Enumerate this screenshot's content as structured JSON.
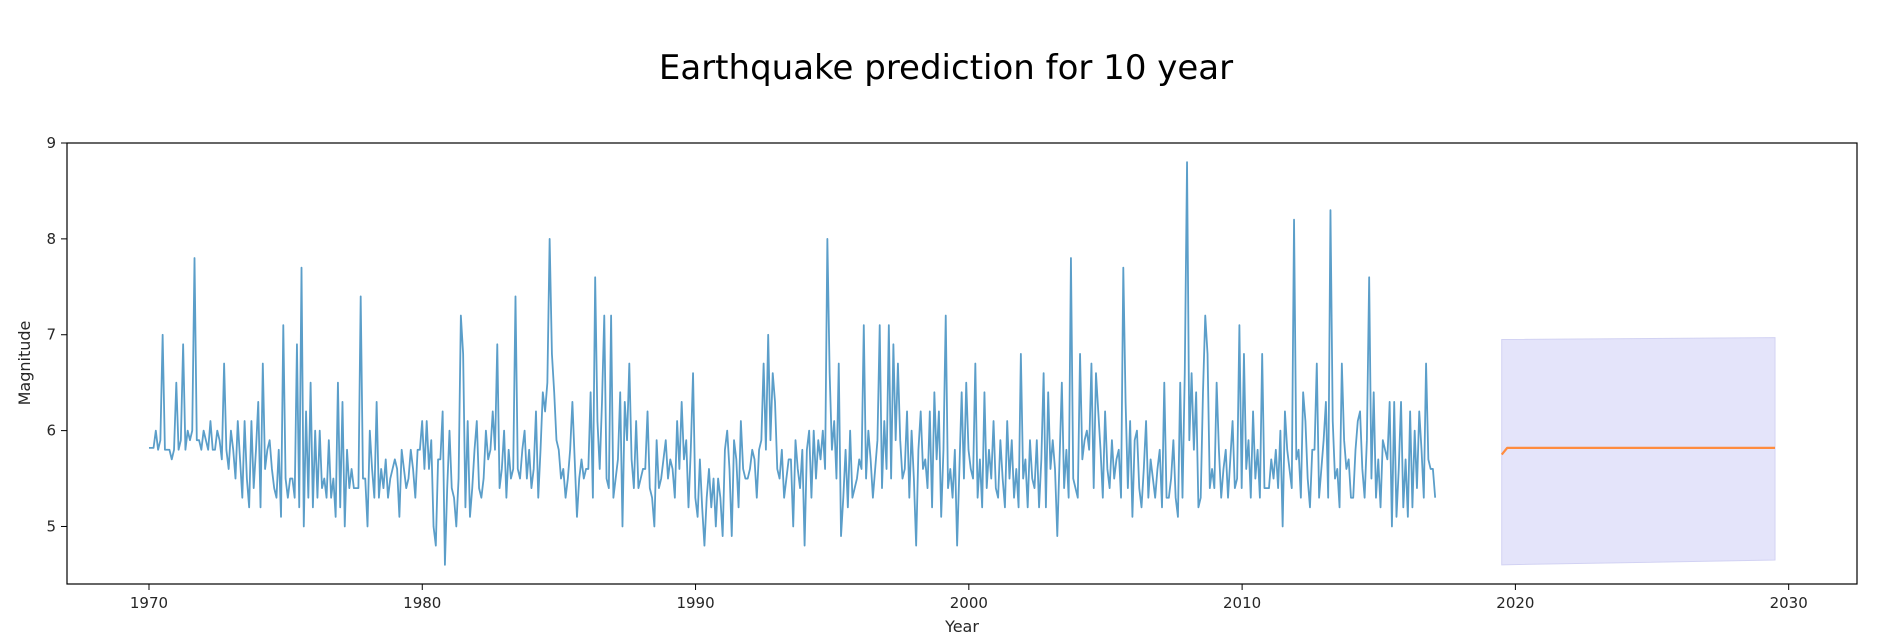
{
  "chart_data": {
    "type": "line",
    "title": "Earthquake prediction for 10 year",
    "xlabel": "Year",
    "ylabel": "Magnitude",
    "xlim": [
      1967,
      2032.5
    ],
    "ylim": [
      4.4,
      9
    ],
    "x_ticks": [
      1970,
      1980,
      1990,
      2000,
      2010,
      2020,
      2030
    ],
    "y_ticks": [
      5,
      6,
      7,
      8,
      9
    ],
    "grid": false,
    "legend": "none",
    "series": [
      {
        "color": "#5b9ec9",
        "x_start": 1970.0,
        "x_step": 0.0833,
        "values": [
          5.82,
          5.82,
          5.82,
          6.0,
          5.8,
          5.9,
          7.0,
          5.8,
          5.8,
          5.8,
          5.7,
          5.8,
          6.5,
          5.8,
          5.9,
          6.9,
          5.8,
          6.0,
          5.9,
          6.0,
          7.8,
          5.9,
          5.9,
          5.8,
          6.0,
          5.9,
          5.8,
          6.1,
          5.8,
          5.8,
          6.0,
          5.9,
          5.7,
          6.7,
          5.8,
          5.6,
          6.0,
          5.8,
          5.5,
          6.1,
          5.7,
          5.3,
          6.1,
          5.5,
          5.2,
          6.1,
          5.4,
          5.8,
          6.3,
          5.2,
          6.7,
          5.6,
          5.8,
          5.9,
          5.6,
          5.4,
          5.3,
          5.8,
          5.1,
          7.1,
          5.5,
          5.3,
          5.5,
          5.5,
          5.3,
          6.9,
          5.2,
          7.7,
          5.0,
          6.2,
          5.3,
          6.5,
          5.2,
          6.0,
          5.3,
          6.0,
          5.4,
          5.5,
          5.3,
          5.9,
          5.3,
          5.5,
          5.1,
          6.5,
          5.2,
          6.3,
          5.0,
          5.8,
          5.4,
          5.6,
          5.4,
          5.4,
          5.4,
          7.4,
          5.5,
          5.5,
          5.0,
          6.0,
          5.6,
          5.3,
          6.3,
          5.3,
          5.6,
          5.4,
          5.7,
          5.3,
          5.5,
          5.6,
          5.7,
          5.6,
          5.1,
          5.8,
          5.6,
          5.4,
          5.5,
          5.8,
          5.6,
          5.3,
          5.8,
          5.8,
          6.1,
          5.6,
          6.1,
          5.6,
          5.9,
          5.0,
          4.8,
          5.7,
          5.7,
          6.2,
          4.6,
          5.4,
          6.0,
          5.4,
          5.3,
          5.0,
          5.5,
          7.2,
          6.8,
          5.2,
          6.1,
          5.1,
          5.4,
          5.8,
          6.1,
          5.4,
          5.3,
          5.5,
          6.0,
          5.7,
          5.8,
          6.2,
          5.8,
          6.9,
          5.4,
          5.6,
          6.0,
          5.3,
          5.8,
          5.5,
          5.6,
          7.4,
          5.6,
          5.5,
          5.8,
          6.0,
          5.5,
          5.8,
          5.4,
          5.6,
          6.2,
          5.3,
          5.8,
          6.4,
          6.2,
          6.5,
          8.0,
          6.8,
          6.4,
          5.9,
          5.8,
          5.5,
          5.6,
          5.3,
          5.5,
          5.8,
          6.3,
          5.7,
          5.1,
          5.5,
          5.7,
          5.5,
          5.6,
          5.6,
          6.4,
          5.3,
          7.6,
          6.1,
          5.6,
          6.3,
          7.2,
          5.5,
          5.4,
          7.2,
          5.3,
          5.5,
          5.7,
          6.4,
          5.0,
          6.3,
          5.9,
          6.7,
          5.7,
          5.4,
          6.1,
          5.4,
          5.5,
          5.6,
          5.6,
          6.2,
          5.4,
          5.3,
          5.0,
          5.9,
          5.4,
          5.5,
          5.7,
          5.9,
          5.5,
          5.7,
          5.6,
          5.3,
          6.1,
          5.6,
          6.3,
          5.7,
          5.9,
          5.2,
          5.8,
          6.6,
          5.3,
          5.1,
          5.7,
          5.2,
          4.8,
          5.3,
          5.6,
          5.2,
          5.5,
          5.0,
          5.5,
          5.3,
          4.9,
          5.8,
          6.0,
          5.6,
          4.9,
          5.9,
          5.7,
          5.2,
          6.1,
          5.6,
          5.5,
          5.5,
          5.6,
          5.8,
          5.7,
          5.3,
          5.8,
          5.9,
          6.7,
          5.8,
          7.0,
          5.9,
          6.6,
          6.3,
          5.6,
          5.5,
          5.8,
          5.3,
          5.5,
          5.7,
          5.7,
          5.0,
          5.9,
          5.6,
          5.4,
          5.8,
          4.8,
          5.8,
          6.0,
          5.3,
          6.0,
          5.5,
          5.9,
          5.7,
          6.0,
          5.6,
          8.0,
          6.6,
          5.8,
          6.1,
          5.5,
          6.7,
          4.9,
          5.3,
          5.8,
          5.2,
          6.0,
          5.3,
          5.4,
          5.5,
          5.7,
          5.6,
          7.1,
          5.5,
          6.0,
          5.7,
          5.3,
          5.6,
          5.9,
          7.1,
          5.4,
          6.1,
          5.6,
          7.1,
          5.5,
          6.9,
          5.9,
          6.7,
          5.9,
          5.5,
          5.6,
          6.2,
          5.3,
          6.0,
          5.5,
          4.8,
          5.8,
          6.2,
          5.6,
          5.7,
          5.4,
          6.2,
          5.2,
          6.4,
          5.7,
          6.2,
          5.1,
          5.8,
          7.2,
          5.4,
          5.6,
          5.3,
          5.8,
          4.8,
          5.6,
          6.4,
          5.5,
          6.5,
          5.8,
          5.6,
          5.5,
          6.7,
          5.3,
          5.7,
          5.2,
          6.4,
          5.4,
          5.8,
          5.5,
          6.1,
          5.4,
          5.3,
          5.9,
          5.5,
          5.2,
          6.1,
          5.5,
          5.9,
          5.3,
          5.6,
          5.2,
          6.8,
          5.5,
          5.7,
          5.2,
          5.9,
          5.5,
          5.4,
          5.9,
          5.2,
          5.7,
          6.6,
          5.2,
          6.4,
          5.6,
          5.9,
          5.6,
          4.9,
          5.7,
          6.5,
          5.4,
          5.8,
          5.3,
          7.8,
          5.5,
          5.4,
          5.3,
          6.8,
          5.7,
          5.9,
          6.0,
          5.8,
          6.7,
          5.4,
          6.6,
          6.2,
          5.8,
          5.3,
          6.2,
          5.6,
          5.4,
          5.9,
          5.5,
          5.7,
          5.8,
          5.3,
          7.7,
          6.3,
          5.4,
          6.1,
          5.1,
          5.9,
          6.0,
          5.4,
          5.2,
          5.6,
          6.1,
          5.3,
          5.7,
          5.5,
          5.3,
          5.6,
          5.8,
          5.2,
          6.5,
          5.3,
          5.3,
          5.5,
          5.9,
          5.3,
          5.1,
          6.5,
          5.3,
          6.6,
          8.8,
          5.9,
          6.6,
          5.8,
          6.4,
          5.2,
          5.3,
          6.4,
          7.2,
          6.8,
          5.4,
          5.6,
          5.4,
          6.5,
          5.8,
          5.3,
          5.6,
          5.8,
          5.3,
          5.7,
          6.1,
          5.4,
          5.5,
          7.1,
          5.4,
          6.8,
          5.6,
          5.9,
          5.3,
          6.2,
          5.5,
          5.8,
          5.3,
          6.8,
          5.4,
          5.4,
          5.4,
          5.7,
          5.5,
          5.8,
          5.4,
          6.0,
          5.0,
          6.2,
          5.8,
          5.6,
          5.4,
          8.2,
          5.7,
          5.8,
          5.3,
          6.4,
          6.1,
          5.5,
          5.2,
          5.8,
          5.8,
          6.7,
          5.3,
          5.6,
          5.9,
          6.3,
          5.3,
          8.3,
          6.1,
          5.5,
          5.6,
          5.2,
          6.7,
          5.9,
          5.6,
          5.7,
          5.3,
          5.3,
          5.8,
          6.1,
          6.2,
          5.6,
          5.3,
          5.9,
          7.6,
          5.5,
          6.4,
          5.3,
          5.7,
          5.2,
          5.9,
          5.8,
          5.7,
          6.3,
          5.0,
          6.3,
          5.1,
          5.6,
          6.3,
          5.2,
          5.7,
          5.1,
          6.2,
          5.2,
          6.0,
          5.4,
          6.2,
          5.8,
          5.3,
          6.7,
          5.7,
          5.6,
          5.6,
          5.3
        ]
      },
      {
        "color": "#ff8c3f",
        "x": [
          2019.5,
          2019.7,
          2020.0,
          2029.5
        ],
        "values": [
          5.75,
          5.82,
          5.82,
          5.82
        ]
      }
    ],
    "confidence_band": {
      "color": "#e4e4fa",
      "x": [
        2019.5,
        2029.5
      ],
      "lower": [
        4.6,
        4.65
      ],
      "upper": [
        6.95,
        6.97
      ]
    }
  }
}
